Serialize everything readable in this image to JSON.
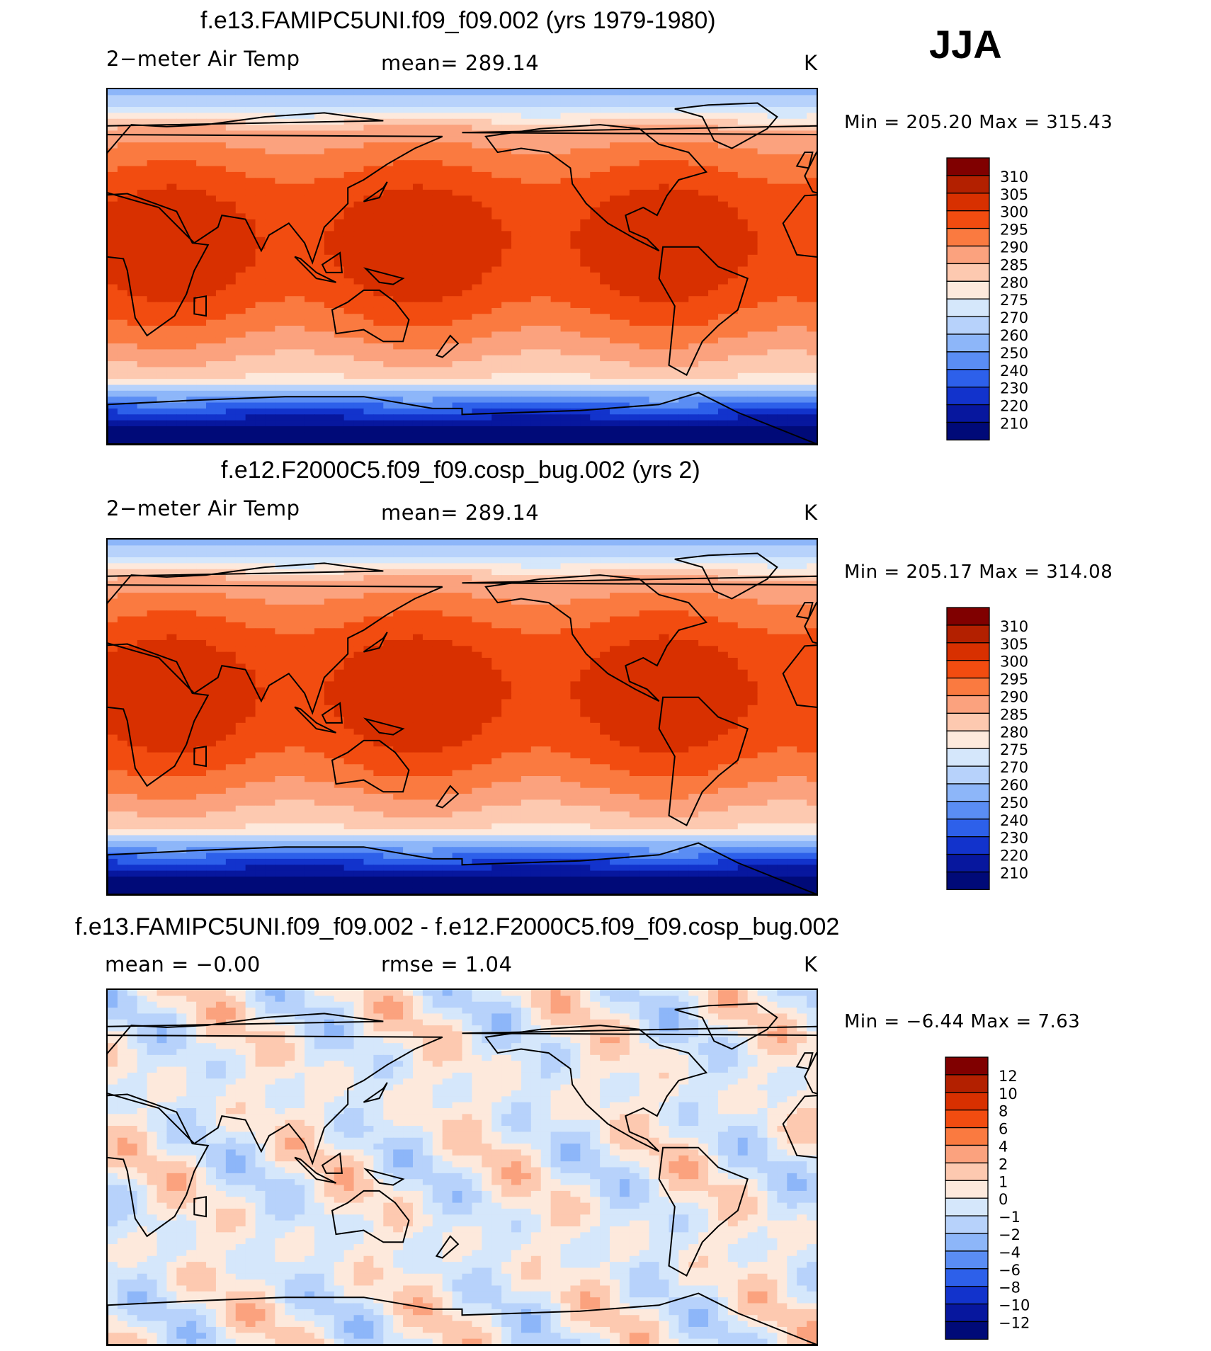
{
  "season": "JJA",
  "panels": [
    {
      "title": "f.e13.FAMIPC5UNI.f09_f09.002 (yrs 1979-1980)",
      "variable": "2−meter Air Temp",
      "stat_text": "mean=  289.14",
      "stat2_text": "",
      "units": "K",
      "minmax": "Min  =  205.20  Max  =  315.43",
      "map_type": "abs"
    },
    {
      "title": "f.e12.F2000C5.f09_f09.cosp_bug.002 (yrs 2)",
      "variable": "2−meter Air Temp",
      "stat_text": "mean=  289.14",
      "stat2_text": "",
      "units": "K",
      "minmax": "Min  =  205.17  Max  =  314.08",
      "map_type": "abs"
    },
    {
      "title": "f.e13.FAMIPC5UNI.f09_f09.002 - f.e12.F2000C5.f09_f09.cosp_bug.002",
      "variable": "mean  =    −0.00",
      "stat_text": "rmse  =       1.04",
      "stat2_text": "",
      "units": "K",
      "minmax": "Min  =    −6.44  Max  =      7.63",
      "map_type": "diff"
    }
  ],
  "colorbars": {
    "abs": {
      "labels": [
        "310",
        "305",
        "300",
        "295",
        "290",
        "285",
        "280",
        "275",
        "270",
        "260",
        "250",
        "240",
        "230",
        "220",
        "210"
      ],
      "colors": [
        "#800000",
        "#b32000",
        "#d83000",
        "#f24c10",
        "#fa7a40",
        "#fba27e",
        "#fdc9b0",
        "#fde9dc",
        "#d5e7fb",
        "#b7d2fb",
        "#8db6f9",
        "#5a8df4",
        "#2d60ea",
        "#1233cc",
        "#07179e",
        "#000a78"
      ]
    },
    "diff": {
      "labels": [
        "12",
        "10",
        "8",
        "6",
        "4",
        "2",
        "1",
        "0",
        "−1",
        "−2",
        "−4",
        "−6",
        "−8",
        "−10",
        "−12"
      ],
      "colors": [
        "#800000",
        "#b32000",
        "#d83000",
        "#f24c10",
        "#fa7a40",
        "#fba27e",
        "#fdc9b0",
        "#fde9dc",
        "#d5e7fb",
        "#b7d2fb",
        "#8db6f9",
        "#5a8df4",
        "#2d60ea",
        "#1233cc",
        "#07179e",
        "#000a78"
      ]
    }
  }
}
